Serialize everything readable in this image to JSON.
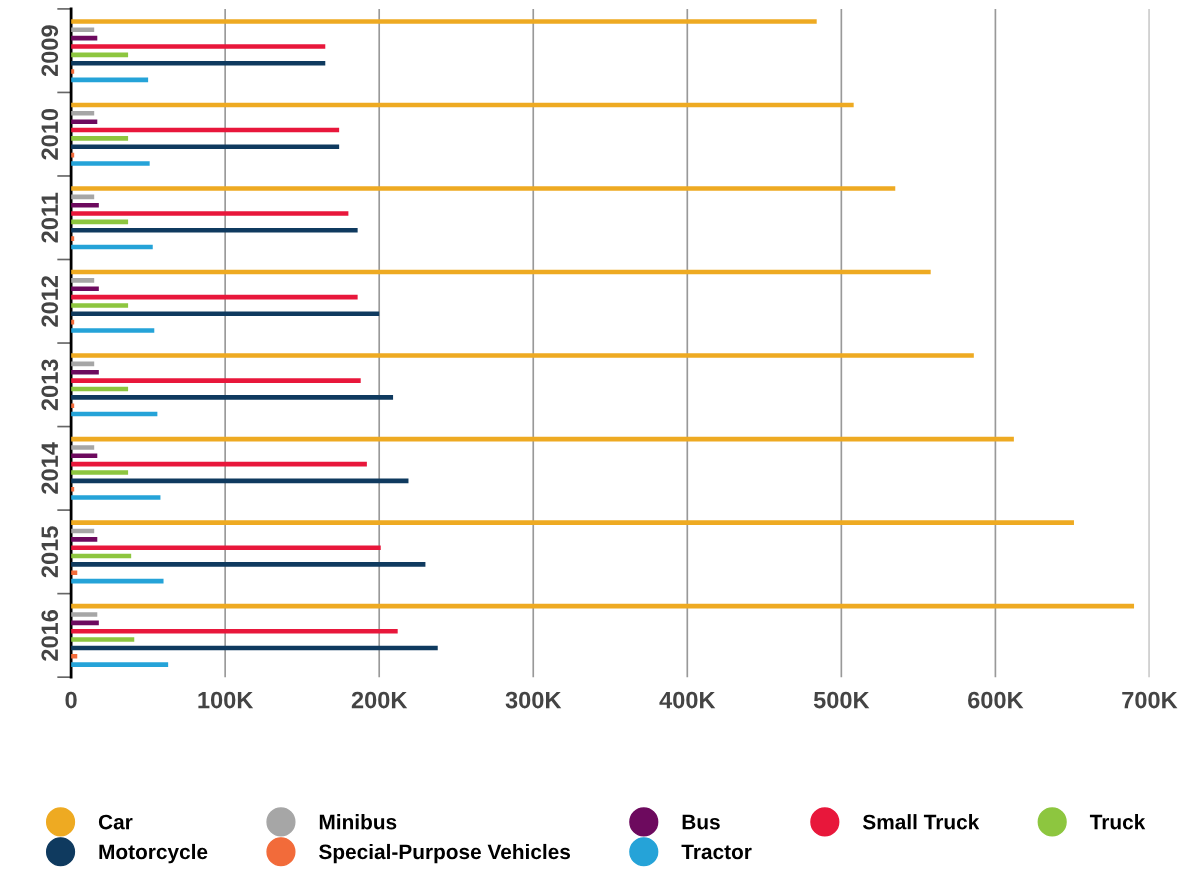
{
  "chart_data": {
    "type": "bar",
    "orientation": "horizontal",
    "categories": [
      "2009",
      "2010",
      "2011",
      "2012",
      "2013",
      "2014",
      "2015",
      "2016"
    ],
    "series": [
      {
        "name": "Car",
        "color": "#eeaa22",
        "values": [
          484000,
          508000,
          535000,
          558000,
          586000,
          612000,
          651000,
          690000
        ]
      },
      {
        "name": "Minibus",
        "color": "#a6a6a6",
        "values": [
          15000,
          15000,
          15000,
          15000,
          15000,
          15000,
          15000,
          17000
        ]
      },
      {
        "name": "Bus",
        "color": "#6d0a5e",
        "values": [
          17000,
          17000,
          18000,
          18000,
          18000,
          17000,
          17000,
          18000
        ]
      },
      {
        "name": "Small Truck",
        "color": "#e8173b",
        "values": [
          165000,
          174000,
          180000,
          186000,
          188000,
          192000,
          201000,
          212000
        ]
      },
      {
        "name": "Truck",
        "color": "#8dc63f",
        "values": [
          37000,
          37000,
          37000,
          37000,
          37000,
          37000,
          39000,
          41000
        ]
      },
      {
        "name": "Motorcycle",
        "color": "#0f3a5f",
        "values": [
          165000,
          174000,
          186000,
          200000,
          209000,
          219000,
          230000,
          238000
        ]
      },
      {
        "name": "Special-Purpose Vehicles",
        "color": "#f26b3a",
        "values": [
          2000,
          2000,
          2000,
          2000,
          2000,
          2000,
          4000,
          4000
        ]
      },
      {
        "name": "Tractor",
        "color": "#25a3d8",
        "values": [
          50000,
          51000,
          53000,
          54000,
          56000,
          58000,
          60000,
          63000
        ]
      }
    ],
    "xlim": [
      0,
      700000
    ],
    "xticks": [
      0,
      {
        "value": 100000,
        "label": "100K"
      },
      {
        "value": 200000,
        "label": "200K"
      },
      {
        "value": 300000,
        "label": "300K"
      },
      {
        "value": 400000,
        "label": "400K"
      },
      {
        "value": 500000,
        "label": "500K"
      },
      {
        "value": 600000,
        "label": "600K"
      },
      {
        "value": 700000,
        "label": "700K"
      }
    ],
    "grid": "x",
    "legend": "bottom"
  }
}
